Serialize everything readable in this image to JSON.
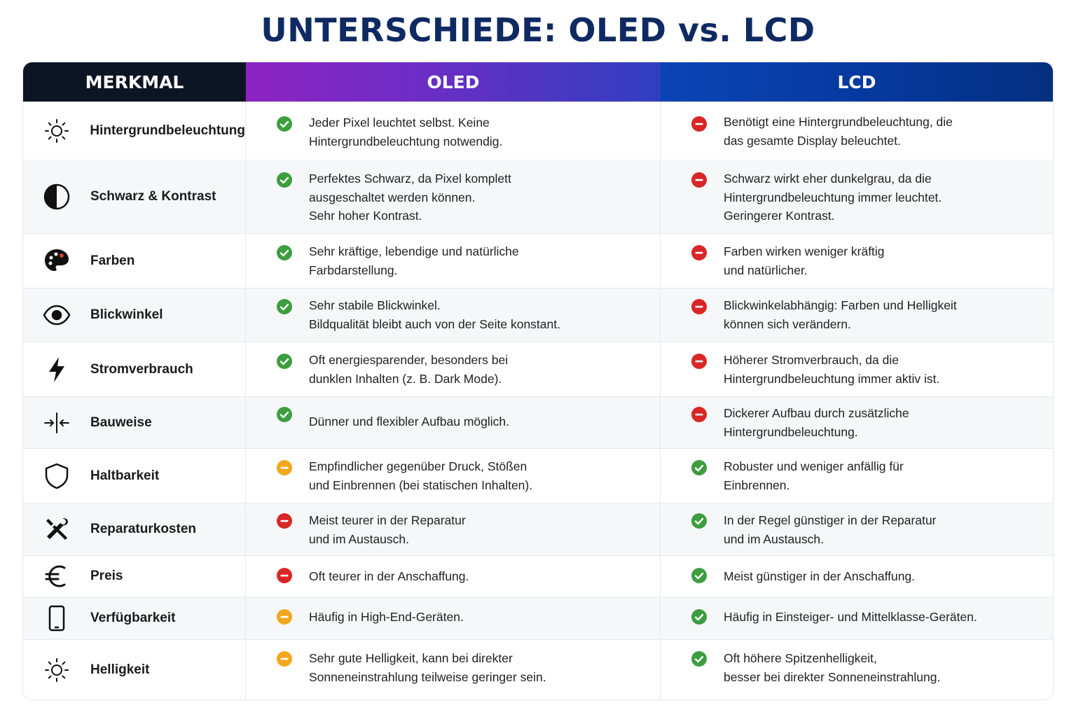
{
  "title": "UNTERSCHIEDE: OLED vs. LCD",
  "headers": {
    "feature": "MERKMAL",
    "oled": "OLED",
    "lcd": "LCD"
  },
  "colors": {
    "good": "#3c9e3f",
    "bad": "#d92626",
    "neutral": "#f2a81d",
    "title": "#0f2a62"
  },
  "rows": [
    {
      "icon": "sun-icon",
      "feature": "Hintergrundbeleuchtung",
      "oled": {
        "status": "good",
        "lines": [
          "Jeder Pixel leuchtet selbst. Keine",
          "Hintergrundbeleuchtung notwendig."
        ]
      },
      "lcd": {
        "status": "bad",
        "lines": [
          "Benötigt eine Hintergrundbeleuchtung, die",
          "das gesamte Display beleuchtet."
        ]
      }
    },
    {
      "icon": "contrast-icon",
      "feature": "Schwarz & Kontrast",
      "oled": {
        "status": "good",
        "lines": [
          "Perfektes Schwarz, da Pixel komplett",
          "ausgeschaltet werden können.",
          "Sehr hoher Kontrast."
        ]
      },
      "lcd": {
        "status": "bad",
        "lines": [
          "Schwarz wirkt eher dunkelgrau, da die",
          "Hintergrundbeleuchtung immer leuchtet.",
          "Geringerer Kontrast."
        ]
      }
    },
    {
      "icon": "palette-icon",
      "feature": "Farben",
      "oled": {
        "status": "good",
        "lines": [
          "Sehr kräftige, lebendige und natürliche",
          "Farbdarstellung."
        ]
      },
      "lcd": {
        "status": "bad",
        "lines": [
          "Farben wirken weniger kräftig",
          "und natürlicher."
        ]
      }
    },
    {
      "icon": "eye-icon",
      "feature": "Blickwinkel",
      "oled": {
        "status": "good",
        "lines": [
          "Sehr stabile Blickwinkel.",
          "Bildqualität bleibt auch von der Seite konstant."
        ]
      },
      "lcd": {
        "status": "bad",
        "lines": [
          "Blickwinkelabhängig: Farben und Helligkeit",
          "können sich verändern."
        ]
      }
    },
    {
      "icon": "lightning-icon",
      "feature": "Stromverbrauch",
      "oled": {
        "status": "good",
        "lines": [
          "Oft energiesparender, besonders bei",
          "dunklen Inhalten (z. B. Dark Mode)."
        ]
      },
      "lcd": {
        "status": "bad",
        "lines": [
          "Höherer Stromverbrauch, da die",
          "Hintergrundbeleuchtung immer aktiv ist."
        ]
      }
    },
    {
      "icon": "thickness-icon",
      "feature": "Bauweise",
      "oled": {
        "status": "good",
        "lines": [
          "Dünner und flexibler Aufbau möglich."
        ]
      },
      "lcd": {
        "status": "bad",
        "lines": [
          "Dickerer Aufbau durch zusätzliche",
          "Hintergrundbeleuchtung."
        ]
      }
    },
    {
      "icon": "shield-icon",
      "feature": "Haltbarkeit",
      "oled": {
        "status": "neutral",
        "lines": [
          "Empfindlicher gegenüber Druck, Stößen",
          "und Einbrennen (bei statischen Inhalten)."
        ]
      },
      "lcd": {
        "status": "good",
        "lines": [
          "Robuster und weniger anfällig für",
          "Einbrennen."
        ]
      }
    },
    {
      "icon": "tools-icon",
      "feature": "Reparaturkosten",
      "oled": {
        "status": "bad",
        "lines": [
          "Meist teurer in der Reparatur",
          "und im Austausch."
        ]
      },
      "lcd": {
        "status": "good",
        "lines": [
          "In der Regel günstiger in der Reparatur",
          "und im Austausch."
        ]
      }
    },
    {
      "icon": "euro-icon",
      "feature": "Preis",
      "oled": {
        "status": "bad",
        "lines": [
          "Oft teurer in der Anschaffung."
        ]
      },
      "lcd": {
        "status": "good",
        "lines": [
          "Meist günstiger in der Anschaffung."
        ]
      }
    },
    {
      "icon": "smartphone-icon",
      "feature": "Verfügbarkeit",
      "oled": {
        "status": "neutral",
        "lines": [
          "Häufig in High-End-Geräten."
        ]
      },
      "lcd": {
        "status": "good",
        "lines": [
          "Häufig in Einsteiger- und Mittelklasse-Geräten."
        ]
      }
    },
    {
      "icon": "sun-icon",
      "feature": "Helligkeit",
      "oled": {
        "status": "neutral",
        "lines": [
          "Sehr gute Helligkeit, kann bei direkter",
          "Sonneneinstrahlung teilweise geringer sein."
        ]
      },
      "lcd": {
        "status": "good",
        "lines": [
          "Oft höhere Spitzenhelligkeit,",
          "besser bei direkter Sonneneinstrahlung."
        ]
      }
    }
  ]
}
